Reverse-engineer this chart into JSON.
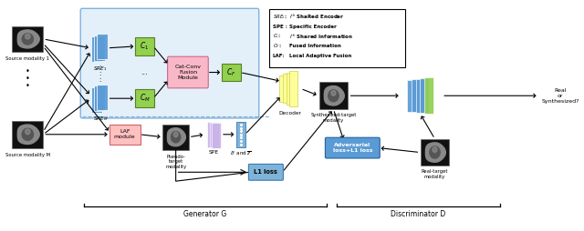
{
  "bg_color": "#ffffff",
  "light_blue_bg": "#daeaf7",
  "blue_encoder": "#5b9bd5",
  "green_box": "#92d050",
  "pink_box": "#f9b8c8",
  "yellow_decoder": "#ffff99",
  "purple_spe": "#c9b3e8",
  "light_blue_dz": "#7fb3d8",
  "adversarial_box": "#5b9bd5",
  "l1_box": "#7fb3d8",
  "laf_box": "#ffc0c0",
  "generator_label": "Generator G",
  "discriminator_label": "Discriminator D",
  "legend_lines": [
    "SRE_i: i^th ShaRed Encoder",
    "SPE : Specific Encoder",
    "C_i: i^th Shared Information",
    "C_F: Fused Information",
    "LAF: Local Adaptive Fusion"
  ]
}
